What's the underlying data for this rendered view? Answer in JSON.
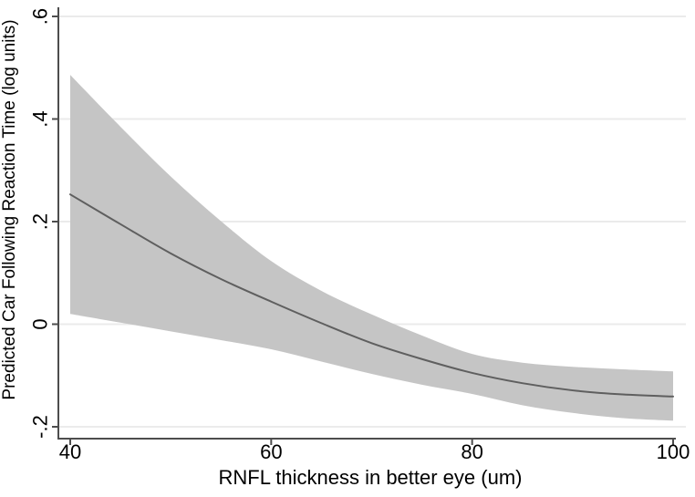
{
  "chart_data": {
    "type": "line",
    "xlabel": "RNFL thickness in better eye (um)",
    "ylabel": "Predicted Car Following Reaction Time (log units)",
    "xlim": [
      40,
      100
    ],
    "ylim": [
      -0.2,
      0.6
    ],
    "grid": "horizontal",
    "legend_position": "none",
    "xticks": [
      {
        "value": 40,
        "label": "40"
      },
      {
        "value": 60,
        "label": "60"
      },
      {
        "value": 80,
        "label": "80"
      },
      {
        "value": 100,
        "label": "100"
      }
    ],
    "yticks": [
      {
        "value": 0.6,
        "label": ".6"
      },
      {
        "value": 0.4,
        "label": ".4"
      },
      {
        "value": 0.2,
        "label": ".2"
      },
      {
        "value": 0,
        "label": "0"
      },
      {
        "value": -0.2,
        "label": "-.2"
      }
    ],
    "x": [
      40,
      45,
      50,
      55,
      60,
      65,
      70,
      75,
      80,
      85,
      90,
      95,
      100
    ],
    "series": [
      {
        "name": "fitted-line",
        "values": [
          0.253,
          0.195,
          0.138,
          0.088,
          0.044,
          0.002,
          -0.037,
          -0.068,
          -0.095,
          -0.115,
          -0.129,
          -0.137,
          -0.141
        ]
      },
      {
        "name": "ci-upper",
        "values": [
          0.486,
          0.385,
          0.288,
          0.201,
          0.123,
          0.065,
          0.019,
          -0.022,
          -0.058,
          -0.075,
          -0.083,
          -0.088,
          -0.092
        ]
      },
      {
        "name": "ci-lower",
        "values": [
          0.02,
          0.003,
          -0.014,
          -0.031,
          -0.049,
          -0.073,
          -0.097,
          -0.118,
          -0.136,
          -0.158,
          -0.173,
          -0.183,
          -0.188
        ]
      }
    ],
    "colors": {
      "background": "#ffffff",
      "band": "#c5c5c5",
      "line": "#5f5f5f",
      "grid": "#ebebeb",
      "axis": "#4d4d4d",
      "text": "#000000"
    }
  }
}
